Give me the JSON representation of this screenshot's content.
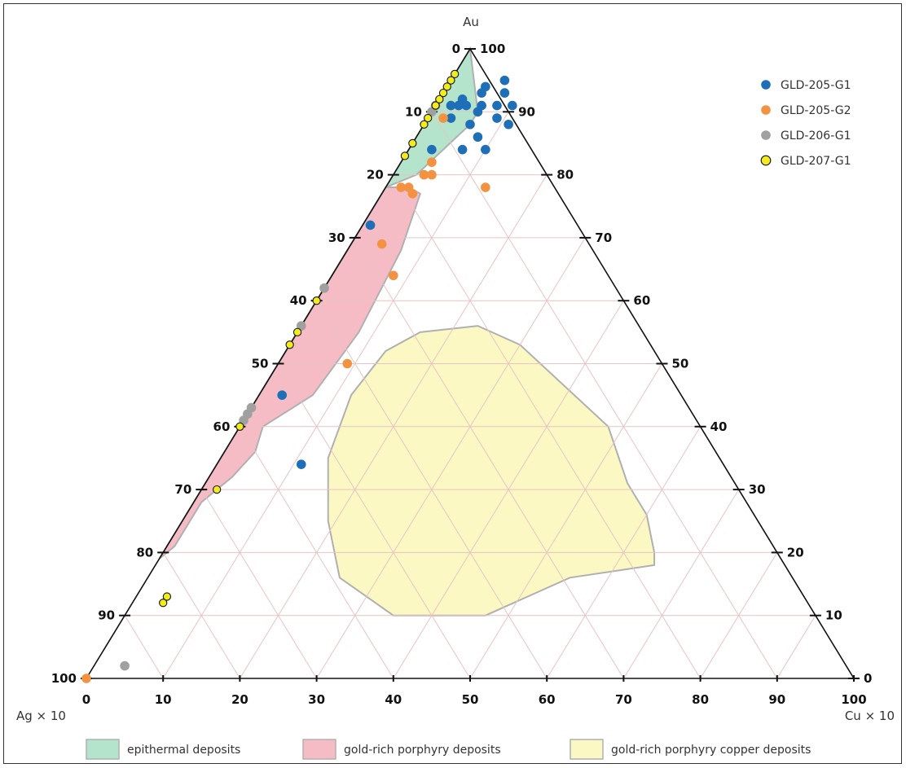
{
  "chart_data": {
    "type": "scatter",
    "subtype": "ternary",
    "axes": {
      "top": {
        "label": "Au"
      },
      "left": {
        "label": "Ag × 10"
      },
      "right": {
        "label": "Cu × 10"
      }
    },
    "tick_values": [
      0,
      10,
      20,
      30,
      40,
      50,
      60,
      70,
      80,
      90,
      100
    ],
    "grid": true,
    "grid_color": "#e8c4c4",
    "legend_position": "top-right",
    "series": [
      {
        "name": "GLD-205-G1",
        "color": "#1f6fb8",
        "points": [
          {
            "au": 95,
            "cu": 7
          },
          {
            "au": 94,
            "cu": 5
          },
          {
            "au": 93,
            "cu": 5
          },
          {
            "au": 90,
            "cu": 6
          },
          {
            "au": 91,
            "cu": 6
          },
          {
            "au": 91,
            "cu": 8
          },
          {
            "au": 93,
            "cu": 8
          },
          {
            "au": 91,
            "cu": 10
          },
          {
            "au": 88,
            "cu": 6
          },
          {
            "au": 91,
            "cu": 4
          },
          {
            "au": 92,
            "cu": 3
          },
          {
            "au": 91,
            "cu": 2
          },
          {
            "au": 91,
            "cu": 3
          },
          {
            "au": 89,
            "cu": 3
          },
          {
            "au": 89,
            "cu": 9
          },
          {
            "au": 88,
            "cu": 11
          },
          {
            "au": 86,
            "cu": 8
          },
          {
            "au": 84,
            "cu": 3
          },
          {
            "au": 84,
            "cu": 7
          },
          {
            "au": 84,
            "cu": 10
          },
          {
            "au": 72,
            "cu": 1
          },
          {
            "au": 45,
            "cu": 3
          },
          {
            "au": 34,
            "cu": 11
          }
        ]
      },
      {
        "name": "GLD-205-G2",
        "color": "#f39240",
        "points": [
          {
            "au": 89,
            "cu": 2
          },
          {
            "au": 82,
            "cu": 4
          },
          {
            "au": 80,
            "cu": 4
          },
          {
            "au": 80,
            "cu": 5
          },
          {
            "au": 78,
            "cu": 2
          },
          {
            "au": 78,
            "cu": 3
          },
          {
            "au": 77,
            "cu": 4
          },
          {
            "au": 78,
            "cu": 13
          },
          {
            "au": 69,
            "cu": 4
          },
          {
            "au": 64,
            "cu": 8
          },
          {
            "au": 50,
            "cu": 9
          },
          {
            "au": 0,
            "cu": 0
          }
        ]
      },
      {
        "name": "GLD-206-G1",
        "color": "#a0a0a0",
        "points": [
          {
            "au": 91,
            "cu": 0
          },
          {
            "au": 90,
            "cu": 0
          },
          {
            "au": 62,
            "cu": 0
          },
          {
            "au": 56,
            "cu": 0
          },
          {
            "au": 43,
            "cu": 0
          },
          {
            "au": 42,
            "cu": 0
          },
          {
            "au": 41,
            "cu": 0
          },
          {
            "au": 2,
            "cu": 4
          }
        ]
      },
      {
        "name": "GLD-207-G1",
        "color": "#f3ec1c",
        "points": [
          {
            "au": 96,
            "cu": 0
          },
          {
            "au": 95,
            "cu": 0
          },
          {
            "au": 94,
            "cu": 0
          },
          {
            "au": 93,
            "cu": 0
          },
          {
            "au": 92,
            "cu": 0
          },
          {
            "au": 91,
            "cu": 0
          },
          {
            "au": 89,
            "cu": 0
          },
          {
            "au": 88,
            "cu": 0
          },
          {
            "au": 85,
            "cu": 0
          },
          {
            "au": 83,
            "cu": 0
          },
          {
            "au": 60,
            "cu": 0
          },
          {
            "au": 55,
            "cu": 0
          },
          {
            "au": 53,
            "cu": 0
          },
          {
            "au": 40,
            "cu": 0
          },
          {
            "au": 30,
            "cu": 2
          },
          {
            "au": 13,
            "cu": 4
          },
          {
            "au": 12,
            "cu": 4
          }
        ]
      }
    ],
    "regions": [
      {
        "name": "epithermal deposits",
        "fill": "#b5e4cc",
        "stroke": "#b0b0b0",
        "polygon": [
          [
            100,
            0
          ],
          [
            90,
            6
          ],
          [
            88,
            6
          ],
          [
            80,
            3
          ],
          [
            78,
            0
          ],
          [
            74,
            0
          ],
          [
            66,
            0
          ],
          [
            58,
            0
          ],
          [
            52,
            0
          ],
          [
            48,
            2
          ],
          [
            46,
            0
          ],
          [
            47,
            0
          ],
          [
            50,
            0
          ],
          [
            56,
            0
          ],
          [
            62,
            0
          ],
          [
            70,
            0
          ],
          [
            80,
            0
          ],
          [
            88,
            0
          ],
          [
            96,
            0
          ],
          [
            100,
            0
          ]
        ]
      },
      {
        "name": "gold-rich porphyry deposits",
        "fill": "#f6bcc5",
        "stroke": "#b0b0b0",
        "polygon": [
          [
            74,
            0
          ],
          [
            78,
            0
          ],
          [
            78,
            3
          ],
          [
            77,
            5
          ],
          [
            68,
            7
          ],
          [
            55,
            8
          ],
          [
            45,
            7
          ],
          [
            40,
            3
          ],
          [
            36,
            4
          ],
          [
            32,
            3
          ],
          [
            28,
            1
          ],
          [
            21,
            1
          ],
          [
            19,
            0
          ],
          [
            25,
            0
          ],
          [
            35,
            0
          ],
          [
            45,
            0
          ],
          [
            50,
            0
          ],
          [
            60,
            0
          ],
          [
            66,
            0
          ]
        ]
      },
      {
        "name": "gold-rich porphyry copper deposits",
        "fill": "#fbf8c3",
        "stroke": "#b0b0b0",
        "polygon": [
          [
            55,
            16
          ],
          [
            56,
            23
          ],
          [
            53,
            30
          ],
          [
            40,
            48
          ],
          [
            31,
            55
          ],
          [
            26,
            60
          ],
          [
            20,
            64
          ],
          [
            18,
            65
          ],
          [
            16,
            55
          ],
          [
            10,
            47
          ],
          [
            10,
            35
          ],
          [
            16,
            25
          ],
          [
            25,
            19
          ],
          [
            35,
            14
          ],
          [
            45,
            12
          ],
          [
            52,
            13
          ]
        ]
      }
    ]
  }
}
